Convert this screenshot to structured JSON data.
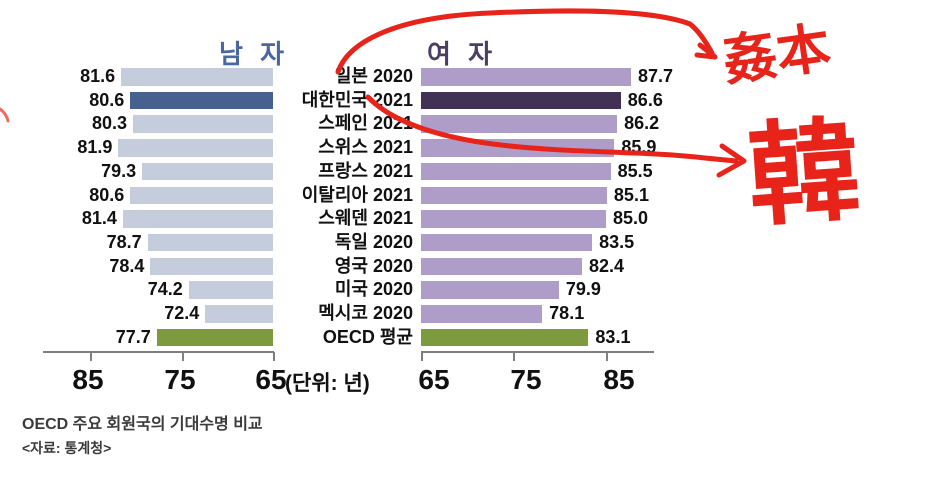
{
  "chart_data": {
    "type": "bar",
    "layout": "tornado-horizontal",
    "categories": [
      "일본 2020",
      "대한민국 2021",
      "스페인 2021",
      "스위스 2021",
      "프랑스 2021",
      "이탈리아 2021",
      "스웨덴 2021",
      "독일 2020",
      "영국 2020",
      "미국 2020",
      "멕시코 2020",
      "OECD 평균"
    ],
    "series": [
      {
        "name": "남 자",
        "values": [
          81.6,
          80.6,
          80.3,
          81.9,
          79.3,
          80.6,
          81.4,
          78.7,
          78.4,
          74.2,
          72.4,
          77.7
        ]
      },
      {
        "name": "여 자",
        "values": [
          87.7,
          86.6,
          86.2,
          85.9,
          85.5,
          85.1,
          85.0,
          83.5,
          82.4,
          79.9,
          78.1,
          83.1
        ]
      }
    ],
    "highlight_index": 1,
    "average_index": 11,
    "axis": {
      "min": 65,
      "max": 90,
      "left_ticks": [
        "85",
        "75",
        "65"
      ],
      "right_ticks": [
        "65",
        "75",
        "85"
      ],
      "unit_label": "(단위: 년)"
    },
    "colors": {
      "men_bar": "#c5cddd",
      "men_highlight": "#47618f",
      "women_bar": "#ad9dc8",
      "women_highlight": "#413155",
      "average_bar": "#7d9a3f",
      "men_title": "#4a68a0",
      "women_title": "#4c3d66",
      "label_text": "#111111",
      "axis": "#7f7f7f"
    }
  },
  "titles": {
    "men": "남 자",
    "women": "여 자"
  },
  "caption": {
    "title": "OECD 주요 회원국의 기대수명 비교",
    "source": "<자료: 통계청>"
  },
  "annotations": {
    "color": "#e8231a",
    "japan_text": "姦本",
    "korea_text": "韓"
  }
}
